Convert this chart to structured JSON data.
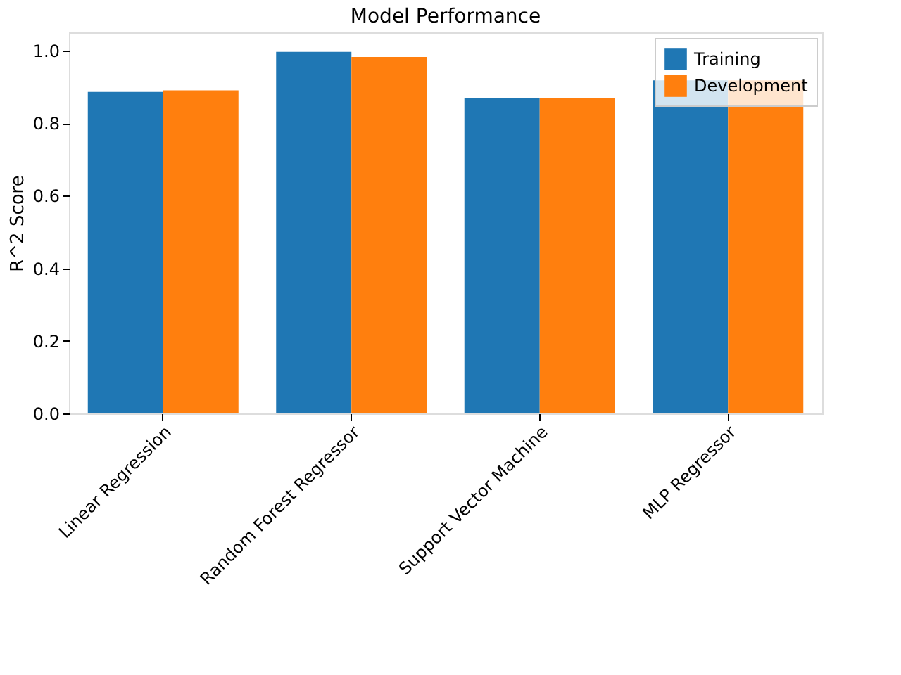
{
  "chart_data": {
    "type": "bar",
    "title": "Model Performance",
    "ylabel": "R^2 Score",
    "categories": [
      "Linear Regression",
      "Random Forest Regressor",
      "Support Vector Machine",
      "MLP Regressor"
    ],
    "series": [
      {
        "name": "Training",
        "color": "#1f77b4",
        "values": [
          0.886,
          0.996,
          0.868,
          0.918
        ]
      },
      {
        "name": "Development",
        "color": "#ff7f0e",
        "values": [
          0.89,
          0.982,
          0.868,
          0.918
        ]
      }
    ],
    "ylim": [
      0,
      1.05
    ],
    "yticks": [
      {
        "value": 0,
        "label": "0.0"
      },
      {
        "value": 0.2,
        "label": "0.2"
      },
      {
        "value": 0.4,
        "label": "0.4"
      },
      {
        "value": 0.6,
        "label": "0.6"
      },
      {
        "value": 0.8,
        "label": "0.8"
      },
      {
        "value": 1.0,
        "label": "1.0"
      }
    ],
    "grid": false,
    "legend": "top right"
  }
}
